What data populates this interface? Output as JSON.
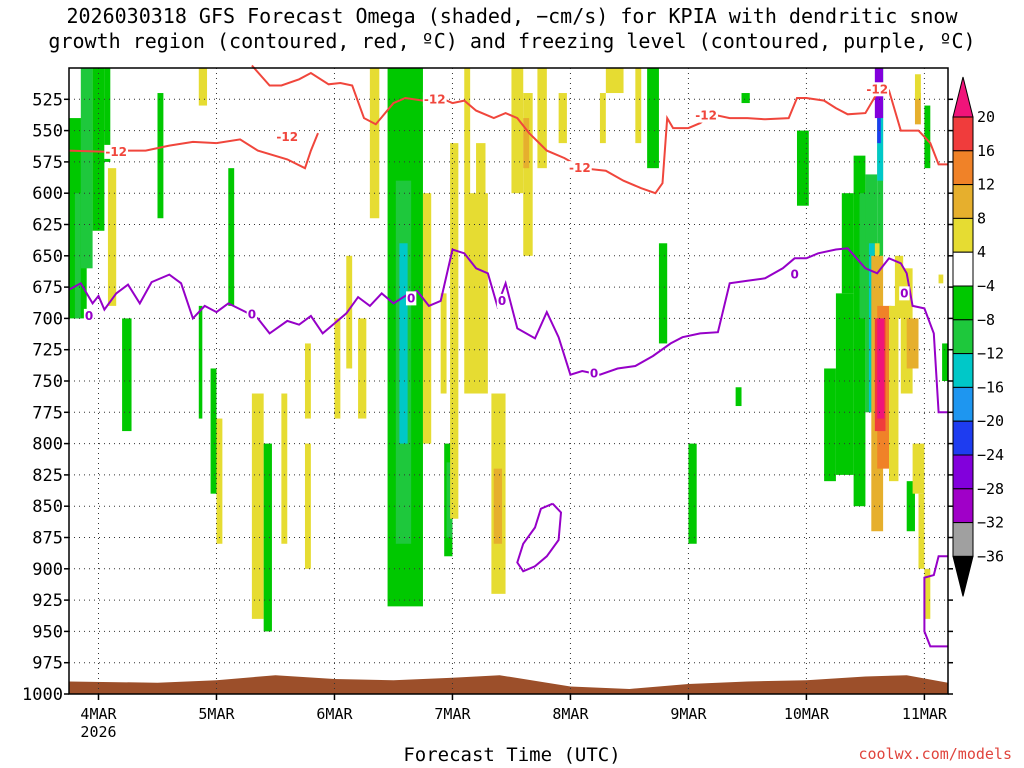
{
  "title": {
    "line1": "2026030318 GFS Forecast Omega (shaded, −cm/s) for KPIA with dendritic snow",
    "line2": "growth region (contoured, red, ºC) and freezing level (contoured, purple, ºC)"
  },
  "xlabel": "Forecast Time (UTC)",
  "credit": "coolwx.com/models",
  "chart_data": {
    "type": "heatmap",
    "title": "2026030318 GFS Forecast Omega (shaded, −cm/s) for KPIA with dendritic snow growth region (contoured, red, ºC) and freezing level (contoured, purple, ºC)",
    "xlabel": "Forecast Time (UTC)",
    "ylabel": "",
    "x_range_days": [
      3.75,
      11.2
    ],
    "x_ticks": [
      {
        "label": "4MAR",
        "sub": "2026",
        "day": 4
      },
      {
        "label": "5MAR",
        "sub": "",
        "day": 5
      },
      {
        "label": "6MAR",
        "sub": "",
        "day": 6
      },
      {
        "label": "7MAR",
        "sub": "",
        "day": 7
      },
      {
        "label": "8MAR",
        "sub": "",
        "day": 8
      },
      {
        "label": "9MAR",
        "sub": "",
        "day": 9
      },
      {
        "label": "10MAR",
        "sub": "",
        "day": 10
      },
      {
        "label": "11MAR",
        "sub": "",
        "day": 11
      }
    ],
    "y_range_hpa": [
      1000,
      500
    ],
    "y_ticks": [
      525,
      550,
      575,
      600,
      625,
      650,
      675,
      700,
      725,
      750,
      775,
      800,
      825,
      850,
      875,
      900,
      925,
      950,
      975,
      1000
    ],
    "grid": true,
    "colorbar": {
      "labels": [
        "20",
        "16",
        "12",
        "8",
        "4",
        "−4",
        "−8",
        "−12",
        "−16",
        "−20",
        "−24",
        "−28",
        "−32",
        "−36"
      ],
      "colors": [
        "#f0147a",
        "#f03c3c",
        "#f08228",
        "#e6af2d",
        "#e6dc32",
        "#ffffff",
        "#00c800",
        "#1ec83c",
        "#00c8c8",
        "#1e96f0",
        "#1e3cf0",
        "#8200dc",
        "#a000c8",
        "#a0a0a0"
      ]
    },
    "dgz_label": "-12",
    "freezing_label": "0",
    "dgz_lower": [
      {
        "d": 3.75,
        "p": 566
      },
      {
        "d": 4.1,
        "p": 567
      },
      {
        "d": 4.25,
        "p": 566
      },
      {
        "d": 4.4,
        "p": 566
      },
      {
        "d": 4.6,
        "p": 562
      },
      {
        "d": 4.8,
        "p": 559
      },
      {
        "d": 5.0,
        "p": 560
      },
      {
        "d": 5.2,
        "p": 557
      },
      {
        "d": 5.35,
        "p": 566
      },
      {
        "d": 5.6,
        "p": 573
      },
      {
        "d": 5.75,
        "p": 580
      },
      {
        "d": 5.8,
        "p": 566
      },
      {
        "d": 5.86,
        "p": 552
      }
    ],
    "dgz_upper": [
      {
        "d": 5.3,
        "p": 498
      },
      {
        "d": 5.45,
        "p": 514
      },
      {
        "d": 5.55,
        "p": 514
      },
      {
        "d": 5.7,
        "p": 509
      },
      {
        "d": 5.8,
        "p": 504
      },
      {
        "d": 5.95,
        "p": 513
      },
      {
        "d": 6.05,
        "p": 512
      },
      {
        "d": 6.15,
        "p": 514
      },
      {
        "d": 6.25,
        "p": 540
      },
      {
        "d": 6.35,
        "p": 545
      },
      {
        "d": 6.5,
        "p": 528
      },
      {
        "d": 6.6,
        "p": 524
      },
      {
        "d": 6.75,
        "p": 526
      },
      {
        "d": 6.9,
        "p": 524
      },
      {
        "d": 7.0,
        "p": 528
      },
      {
        "d": 7.1,
        "p": 526
      },
      {
        "d": 7.2,
        "p": 534
      },
      {
        "d": 7.35,
        "p": 540
      },
      {
        "d": 7.45,
        "p": 536
      },
      {
        "d": 7.55,
        "p": 540
      },
      {
        "d": 7.65,
        "p": 552
      },
      {
        "d": 7.8,
        "p": 566
      },
      {
        "d": 7.95,
        "p": 572
      },
      {
        "d": 8.1,
        "p": 580
      },
      {
        "d": 8.3,
        "p": 582
      },
      {
        "d": 8.45,
        "p": 590
      },
      {
        "d": 8.6,
        "p": 596
      },
      {
        "d": 8.72,
        "p": 600
      },
      {
        "d": 8.78,
        "p": 592
      },
      {
        "d": 8.82,
        "p": 540
      },
      {
        "d": 8.87,
        "p": 548
      },
      {
        "d": 9.0,
        "p": 548
      },
      {
        "d": 9.1,
        "p": 544
      },
      {
        "d": 9.2,
        "p": 537
      },
      {
        "d": 9.35,
        "p": 540
      },
      {
        "d": 9.5,
        "p": 540
      },
      {
        "d": 9.65,
        "p": 541
      },
      {
        "d": 9.85,
        "p": 540
      },
      {
        "d": 9.92,
        "p": 524
      },
      {
        "d": 10.0,
        "p": 524
      },
      {
        "d": 10.15,
        "p": 526
      },
      {
        "d": 10.25,
        "p": 532
      },
      {
        "d": 10.35,
        "p": 537
      },
      {
        "d": 10.5,
        "p": 536
      },
      {
        "d": 10.6,
        "p": 520
      },
      {
        "d": 10.7,
        "p": 518
      },
      {
        "d": 10.8,
        "p": 550
      },
      {
        "d": 10.95,
        "p": 550
      },
      {
        "d": 11.05,
        "p": 560
      },
      {
        "d": 11.12,
        "p": 577
      },
      {
        "d": 11.2,
        "p": 577
      }
    ],
    "freezing_main": [
      {
        "d": 3.75,
        "p": 677
      },
      {
        "d": 3.85,
        "p": 672
      },
      {
        "d": 3.95,
        "p": 688
      },
      {
        "d": 4.0,
        "p": 682
      },
      {
        "d": 4.05,
        "p": 693
      },
      {
        "d": 4.15,
        "p": 680
      },
      {
        "d": 4.25,
        "p": 673
      },
      {
        "d": 4.35,
        "p": 688
      },
      {
        "d": 4.45,
        "p": 671
      },
      {
        "d": 4.6,
        "p": 665
      },
      {
        "d": 4.7,
        "p": 672
      },
      {
        "d": 4.8,
        "p": 700
      },
      {
        "d": 4.9,
        "p": 690
      },
      {
        "d": 5.0,
        "p": 695
      },
      {
        "d": 5.1,
        "p": 688
      },
      {
        "d": 5.25,
        "p": 695
      },
      {
        "d": 5.35,
        "p": 700
      },
      {
        "d": 5.45,
        "p": 712
      },
      {
        "d": 5.6,
        "p": 702
      },
      {
        "d": 5.7,
        "p": 705
      },
      {
        "d": 5.8,
        "p": 698
      },
      {
        "d": 5.9,
        "p": 712
      },
      {
        "d": 6.0,
        "p": 704
      },
      {
        "d": 6.1,
        "p": 696
      },
      {
        "d": 6.2,
        "p": 683
      },
      {
        "d": 6.3,
        "p": 690
      },
      {
        "d": 6.4,
        "p": 680
      },
      {
        "d": 6.5,
        "p": 688
      },
      {
        "d": 6.6,
        "p": 682
      },
      {
        "d": 6.7,
        "p": 678
      },
      {
        "d": 6.8,
        "p": 690
      },
      {
        "d": 6.9,
        "p": 686
      },
      {
        "d": 7.0,
        "p": 645
      },
      {
        "d": 7.1,
        "p": 648
      },
      {
        "d": 7.2,
        "p": 660
      },
      {
        "d": 7.3,
        "p": 664
      },
      {
        "d": 7.38,
        "p": 690
      },
      {
        "d": 7.45,
        "p": 672
      },
      {
        "d": 7.55,
        "p": 708
      },
      {
        "d": 7.7,
        "p": 716
      },
      {
        "d": 7.8,
        "p": 695
      },
      {
        "d": 7.9,
        "p": 715
      },
      {
        "d": 8.0,
        "p": 745
      },
      {
        "d": 8.1,
        "p": 742
      },
      {
        "d": 8.25,
        "p": 745
      },
      {
        "d": 8.4,
        "p": 740
      },
      {
        "d": 8.55,
        "p": 738
      },
      {
        "d": 8.7,
        "p": 730
      },
      {
        "d": 8.85,
        "p": 720
      },
      {
        "d": 8.95,
        "p": 715
      },
      {
        "d": 9.1,
        "p": 712
      },
      {
        "d": 9.25,
        "p": 711
      },
      {
        "d": 9.35,
        "p": 672
      },
      {
        "d": 9.5,
        "p": 670
      },
      {
        "d": 9.65,
        "p": 668
      },
      {
        "d": 9.8,
        "p": 660
      },
      {
        "d": 9.9,
        "p": 652
      },
      {
        "d": 10.0,
        "p": 652
      },
      {
        "d": 10.1,
        "p": 648
      },
      {
        "d": 10.25,
        "p": 645
      },
      {
        "d": 10.35,
        "p": 644
      },
      {
        "d": 10.5,
        "p": 660
      },
      {
        "d": 10.6,
        "p": 664
      },
      {
        "d": 10.7,
        "p": 652
      },
      {
        "d": 10.8,
        "p": 656
      },
      {
        "d": 10.85,
        "p": 664
      },
      {
        "d": 10.9,
        "p": 690
      },
      {
        "d": 11.0,
        "p": 692
      },
      {
        "d": 11.08,
        "p": 712
      },
      {
        "d": 11.12,
        "p": 775
      },
      {
        "d": 11.2,
        "p": 775
      }
    ],
    "freezing_pocket": [
      {
        "d": 7.85,
        "p": 848
      },
      {
        "d": 7.75,
        "p": 852
      },
      {
        "d": 7.7,
        "p": 867
      },
      {
        "d": 7.6,
        "p": 880
      },
      {
        "d": 7.55,
        "p": 895
      },
      {
        "d": 7.6,
        "p": 902
      },
      {
        "d": 7.7,
        "p": 898
      },
      {
        "d": 7.8,
        "p": 890
      },
      {
        "d": 7.9,
        "p": 877
      },
      {
        "d": 7.92,
        "p": 855
      },
      {
        "d": 7.85,
        "p": 848
      }
    ],
    "freezing_lower": [
      {
        "d": 11.2,
        "p": 890
      },
      {
        "d": 11.12,
        "p": 890
      },
      {
        "d": 11.08,
        "p": 905
      },
      {
        "d": 11.0,
        "p": 907
      },
      {
        "d": 11.0,
        "p": 950
      },
      {
        "d": 11.05,
        "p": 962
      },
      {
        "d": 11.2,
        "p": 962
      }
    ],
    "shaded_regions": [
      {
        "d0": 3.75,
        "d1": 3.9,
        "p0": 540,
        "p1": 700,
        "v": -8
      },
      {
        "d0": 3.8,
        "d1": 3.85,
        "p0": 600,
        "p1": 700,
        "v": -12
      },
      {
        "d0": 3.85,
        "d1": 3.95,
        "p0": 500,
        "p1": 660,
        "v": -12
      },
      {
        "d0": 3.95,
        "d1": 4.05,
        "p0": 500,
        "p1": 630,
        "v": -8
      },
      {
        "d0": 4.05,
        "d1": 4.1,
        "p0": 500,
        "p1": 575,
        "v": -8
      },
      {
        "d0": 4.2,
        "d1": 4.28,
        "p0": 700,
        "p1": 790,
        "v": -8
      },
      {
        "d0": 4.08,
        "d1": 4.15,
        "p0": 580,
        "p1": 690,
        "v": 4
      },
      {
        "d0": 4.5,
        "d1": 4.55,
        "p0": 520,
        "p1": 620,
        "v": -8
      },
      {
        "d0": 4.85,
        "d1": 4.92,
        "p0": 500,
        "p1": 530,
        "v": 4
      },
      {
        "d0": 4.85,
        "d1": 4.88,
        "p0": 690,
        "p1": 780,
        "v": -8
      },
      {
        "d0": 4.95,
        "d1": 5.0,
        "p0": 740,
        "p1": 840,
        "v": -8
      },
      {
        "d0": 5.0,
        "d1": 5.05,
        "p0": 780,
        "p1": 880,
        "v": 4
      },
      {
        "d0": 5.1,
        "d1": 5.15,
        "p0": 580,
        "p1": 690,
        "v": -8
      },
      {
        "d0": 5.3,
        "d1": 5.4,
        "p0": 760,
        "p1": 940,
        "v": 4
      },
      {
        "d0": 5.4,
        "d1": 5.47,
        "p0": 800,
        "p1": 950,
        "v": -8
      },
      {
        "d0": 5.55,
        "d1": 5.6,
        "p0": 760,
        "p1": 880,
        "v": 4
      },
      {
        "d0": 5.75,
        "d1": 5.8,
        "p0": 800,
        "p1": 900,
        "v": 4
      },
      {
        "d0": 6.0,
        "d1": 6.05,
        "p0": 700,
        "p1": 780,
        "v": 4
      },
      {
        "d0": 6.1,
        "d1": 6.15,
        "p0": 650,
        "p1": 740,
        "v": 4
      },
      {
        "d0": 6.2,
        "d1": 6.27,
        "p0": 700,
        "p1": 780,
        "v": 4
      },
      {
        "d0": 5.75,
        "d1": 5.8,
        "p0": 720,
        "p1": 780,
        "v": 4
      },
      {
        "d0": 6.45,
        "d1": 6.75,
        "p0": 500,
        "p1": 930,
        "v": -8
      },
      {
        "d0": 6.52,
        "d1": 6.65,
        "p0": 590,
        "p1": 880,
        "v": -12
      },
      {
        "d0": 6.55,
        "d1": 6.62,
        "p0": 640,
        "p1": 800,
        "v": -16
      },
      {
        "d0": 6.3,
        "d1": 6.38,
        "p0": 500,
        "p1": 620,
        "v": 4
      },
      {
        "d0": 6.75,
        "d1": 6.82,
        "p0": 600,
        "p1": 800,
        "v": 4
      },
      {
        "d0": 6.9,
        "d1": 6.95,
        "p0": 680,
        "p1": 760,
        "v": 4
      },
      {
        "d0": 6.93,
        "d1": 7.0,
        "p0": 800,
        "p1": 890,
        "v": -8
      },
      {
        "d0": 6.95,
        "d1": 7.0,
        "p0": 815,
        "p1": 875,
        "v": -12
      },
      {
        "d0": 6.98,
        "d1": 7.05,
        "p0": 560,
        "p1": 860,
        "v": 4
      },
      {
        "d0": 7.1,
        "d1": 7.15,
        "p0": 500,
        "p1": 600,
        "v": 4
      },
      {
        "d0": 7.1,
        "d1": 7.3,
        "p0": 600,
        "p1": 760,
        "v": 4
      },
      {
        "d0": 7.2,
        "d1": 7.28,
        "p0": 560,
        "p1": 660,
        "v": 4
      },
      {
        "d0": 7.33,
        "d1": 7.45,
        "p0": 760,
        "p1": 920,
        "v": 4
      },
      {
        "d0": 7.35,
        "d1": 7.42,
        "p0": 820,
        "p1": 880,
        "v": 8
      },
      {
        "d0": 7.5,
        "d1": 7.6,
        "p0": 500,
        "p1": 600,
        "v": 4
      },
      {
        "d0": 7.6,
        "d1": 7.68,
        "p0": 520,
        "p1": 650,
        "v": 4
      },
      {
        "d0": 7.6,
        "d1": 7.65,
        "p0": 540,
        "p1": 580,
        "v": 8
      },
      {
        "d0": 7.72,
        "d1": 7.8,
        "p0": 500,
        "p1": 580,
        "v": 4
      },
      {
        "d0": 7.9,
        "d1": 7.97,
        "p0": 520,
        "p1": 560,
        "v": 4
      },
      {
        "d0": 8.25,
        "d1": 8.3,
        "p0": 520,
        "p1": 560,
        "v": 4
      },
      {
        "d0": 8.55,
        "d1": 8.6,
        "p0": 500,
        "p1": 560,
        "v": 4
      },
      {
        "d0": 8.65,
        "d1": 8.75,
        "p0": 500,
        "p1": 580,
        "v": -8
      },
      {
        "d0": 8.75,
        "d1": 8.82,
        "p0": 640,
        "p1": 720,
        "v": -8
      },
      {
        "d0": 8.3,
        "d1": 8.45,
        "p0": 500,
        "p1": 520,
        "v": 4
      },
      {
        "d0": 9.0,
        "d1": 9.07,
        "p0": 800,
        "p1": 880,
        "v": -8
      },
      {
        "d0": 9.4,
        "d1": 9.45,
        "p0": 755,
        "p1": 770,
        "v": -8
      },
      {
        "d0": 9.45,
        "d1": 9.52,
        "p0": 520,
        "p1": 528,
        "v": -8
      },
      {
        "d0": 9.92,
        "d1": 10.02,
        "p0": 550,
        "p1": 610,
        "v": -8
      },
      {
        "d0": 10.15,
        "d1": 10.25,
        "p0": 740,
        "p1": 830,
        "v": -8
      },
      {
        "d0": 10.25,
        "d1": 10.4,
        "p0": 680,
        "p1": 825,
        "v": -8
      },
      {
        "d0": 10.3,
        "d1": 10.4,
        "p0": 600,
        "p1": 680,
        "v": -8
      },
      {
        "d0": 10.4,
        "d1": 10.5,
        "p0": 570,
        "p1": 850,
        "v": -8
      },
      {
        "d0": 10.45,
        "d1": 10.5,
        "p0": 600,
        "p1": 700,
        "v": -12
      },
      {
        "d0": 10.5,
        "d1": 10.6,
        "p0": 585,
        "p1": 775,
        "v": -12
      },
      {
        "d0": 10.53,
        "d1": 10.58,
        "p0": 640,
        "p1": 775,
        "v": -16
      },
      {
        "d0": 10.6,
        "d1": 10.65,
        "p0": 500,
        "p1": 660,
        "v": -12
      },
      {
        "d0": 10.6,
        "d1": 10.65,
        "p0": 500,
        "p1": 590,
        "v": -16
      },
      {
        "d0": 10.58,
        "d1": 10.65,
        "p0": 500,
        "p1": 540,
        "v": -28
      },
      {
        "d0": 10.6,
        "d1": 10.63,
        "p0": 540,
        "p1": 560,
        "v": -24
      },
      {
        "d0": 10.58,
        "d1": 10.62,
        "p0": 640,
        "p1": 700,
        "v": 4
      },
      {
        "d0": 10.55,
        "d1": 10.65,
        "p0": 650,
        "p1": 870,
        "v": 8
      },
      {
        "d0": 10.6,
        "d1": 10.72,
        "p0": 690,
        "p1": 820,
        "v": 12
      },
      {
        "d0": 10.58,
        "d1": 10.67,
        "p0": 700,
        "p1": 790,
        "v": 16
      },
      {
        "d0": 10.6,
        "d1": 10.66,
        "p0": 700,
        "p1": 780,
        "v": 20
      },
      {
        "d0": 10.7,
        "d1": 10.78,
        "p0": 690,
        "p1": 830,
        "v": 4
      },
      {
        "d0": 10.75,
        "d1": 10.82,
        "p0": 650,
        "p1": 700,
        "v": 4
      },
      {
        "d0": 10.8,
        "d1": 10.9,
        "p0": 660,
        "p1": 760,
        "v": 4
      },
      {
        "d0": 10.85,
        "d1": 10.95,
        "p0": 700,
        "p1": 740,
        "v": 8
      },
      {
        "d0": 10.92,
        "d1": 10.97,
        "p0": 520,
        "p1": 545,
        "v": 8
      },
      {
        "d0": 10.92,
        "d1": 10.97,
        "p0": 505,
        "p1": 525,
        "v": 4
      },
      {
        "d0": 10.95,
        "d1": 11.0,
        "p0": 840,
        "p1": 900,
        "v": 4
      },
      {
        "d0": 11.0,
        "d1": 11.05,
        "p0": 530,
        "p1": 580,
        "v": -8
      },
      {
        "d0": 11.0,
        "d1": 11.05,
        "p0": 900,
        "p1": 940,
        "v": 4
      },
      {
        "d0": 11.12,
        "d1": 11.16,
        "p0": 665,
        "p1": 672,
        "v": 4
      },
      {
        "d0": 11.15,
        "d1": 11.2,
        "p0": 720,
        "p1": 750,
        "v": -8
      },
      {
        "d0": 10.85,
        "d1": 10.92,
        "p0": 830,
        "p1": 870,
        "v": -8
      },
      {
        "d0": 10.9,
        "d1": 11.0,
        "p0": 800,
        "p1": 840,
        "v": 4
      }
    ],
    "ground_pressure": [
      {
        "d": 3.75,
        "p": 990
      },
      {
        "d": 4.5,
        "p": 991
      },
      {
        "d": 5.0,
        "p": 989
      },
      {
        "d": 5.5,
        "p": 985
      },
      {
        "d": 6.0,
        "p": 988
      },
      {
        "d": 6.5,
        "p": 989
      },
      {
        "d": 7.0,
        "p": 987
      },
      {
        "d": 7.4,
        "p": 985
      },
      {
        "d": 8.0,
        "p": 994
      },
      {
        "d": 8.5,
        "p": 996
      },
      {
        "d": 9.0,
        "p": 992
      },
      {
        "d": 9.5,
        "p": 990
      },
      {
        "d": 10.0,
        "p": 989
      },
      {
        "d": 10.5,
        "p": 986
      },
      {
        "d": 10.85,
        "p": 985
      },
      {
        "d": 11.2,
        "p": 991
      }
    ]
  }
}
